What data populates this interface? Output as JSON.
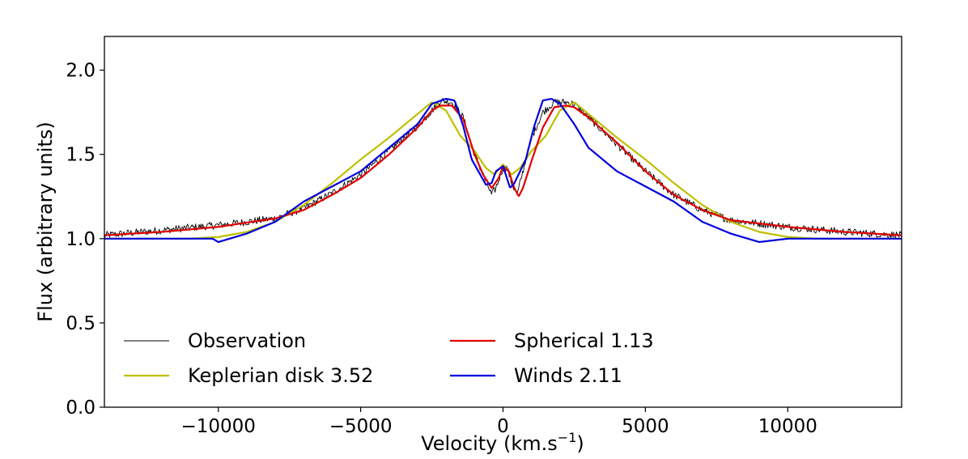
{
  "chart_data": {
    "type": "line",
    "title": "",
    "xlabel": "Velocity (km.s",
    "xlabel_superscript": "−1",
    "xlabel_suffix": ")",
    "ylabel": "Flux (arbitrary units)",
    "xlim": [
      -14000,
      14000
    ],
    "ylim": [
      0.0,
      2.2
    ],
    "xticks": [
      -10000,
      -5000,
      0,
      5000,
      10000
    ],
    "xtick_labels": [
      "−10000",
      "−5000",
      "0",
      "5000",
      "10000"
    ],
    "yticks": [
      0.0,
      0.5,
      1.0,
      1.5,
      2.0
    ],
    "ytick_labels": [
      "0.0",
      "0.5",
      "1.0",
      "1.5",
      "2.0"
    ],
    "grid": false,
    "legend_position": "bottom-left",
    "legend_columns": 2,
    "series": [
      {
        "name": "Observation",
        "legend_label": "Observation",
        "color": "#000000",
        "style": "thin-noisy",
        "x": [
          -14000,
          -12000,
          -10000,
          -8000,
          -7000,
          -6000,
          -5000,
          -4000,
          -3000,
          -2500,
          -2200,
          -1800,
          -1400,
          -1000,
          -700,
          -500,
          -400,
          -250,
          0,
          150,
          300,
          500,
          700,
          1000,
          1400,
          1800,
          2200,
          2500,
          3000,
          4000,
          5000,
          6000,
          7000,
          8000,
          10000,
          12000,
          14000
        ],
        "values": [
          1.02,
          1.05,
          1.08,
          1.12,
          1.18,
          1.27,
          1.38,
          1.52,
          1.67,
          1.76,
          1.82,
          1.81,
          1.72,
          1.5,
          1.38,
          1.3,
          1.26,
          1.3,
          1.42,
          1.42,
          1.33,
          1.26,
          1.4,
          1.6,
          1.75,
          1.81,
          1.81,
          1.8,
          1.72,
          1.56,
          1.4,
          1.26,
          1.17,
          1.11,
          1.07,
          1.04,
          1.02
        ]
      },
      {
        "name": "Keplerian disk",
        "legend_label": "Keplerian disk  3.52",
        "color": "#bfbf00",
        "x": [
          -14000,
          -12000,
          -11000,
          -10000,
          -9000,
          -8000,
          -7000,
          -6000,
          -5000,
          -4000,
          -3000,
          -2500,
          -2000,
          -1500,
          -1000,
          -600,
          -300,
          0,
          300,
          600,
          1000,
          1500,
          2000,
          2500,
          3000,
          4000,
          5000,
          6000,
          7000,
          8000,
          9000,
          10000,
          11000,
          12000,
          14000
        ],
        "values": [
          1.0,
          1.0,
          1.0,
          1.01,
          1.04,
          1.1,
          1.2,
          1.33,
          1.47,
          1.6,
          1.74,
          1.81,
          1.76,
          1.61,
          1.52,
          1.42,
          1.38,
          1.44,
          1.38,
          1.42,
          1.52,
          1.61,
          1.76,
          1.81,
          1.74,
          1.6,
          1.47,
          1.33,
          1.2,
          1.1,
          1.04,
          1.01,
          1.0,
          1.0,
          1.0
        ]
      },
      {
        "name": "Spherical",
        "legend_label": "Spherical  1.13",
        "color": "#e00000",
        "x": [
          -14000,
          -12000,
          -10000,
          -8000,
          -7000,
          -6000,
          -5000,
          -4000,
          -3000,
          -2500,
          -2200,
          -1800,
          -1400,
          -1000,
          -700,
          -400,
          -150,
          0,
          200,
          400,
          550,
          700,
          1000,
          1400,
          1800,
          2200,
          2500,
          3000,
          4000,
          5000,
          6000,
          7000,
          8000,
          10000,
          12000,
          14000
        ],
        "values": [
          1.02,
          1.04,
          1.07,
          1.12,
          1.17,
          1.26,
          1.36,
          1.5,
          1.66,
          1.76,
          1.79,
          1.79,
          1.71,
          1.5,
          1.38,
          1.3,
          1.36,
          1.43,
          1.4,
          1.3,
          1.25,
          1.3,
          1.46,
          1.66,
          1.78,
          1.79,
          1.78,
          1.72,
          1.57,
          1.4,
          1.26,
          1.17,
          1.11,
          1.07,
          1.04,
          1.02
        ]
      },
      {
        "name": "Winds",
        "legend_label": "Winds  2.11",
        "color": "#0000dd",
        "x": [
          -14000,
          -12000,
          -10200,
          -10000,
          -9000,
          -8000,
          -7000,
          -6000,
          -5000,
          -4000,
          -3000,
          -2500,
          -2000,
          -1700,
          -1400,
          -1100,
          -800,
          -600,
          -400,
          -250,
          0,
          250,
          400,
          600,
          800,
          1100,
          1400,
          1700,
          2000,
          2500,
          3000,
          4000,
          5000,
          6000,
          7000,
          8000,
          9000,
          10000,
          10200,
          12000,
          14000
        ],
        "values": [
          1.0,
          1.0,
          1.0,
          0.98,
          1.03,
          1.1,
          1.22,
          1.31,
          1.4,
          1.54,
          1.68,
          1.8,
          1.83,
          1.82,
          1.67,
          1.47,
          1.38,
          1.32,
          1.33,
          1.4,
          1.43,
          1.3,
          1.33,
          1.4,
          1.47,
          1.67,
          1.82,
          1.83,
          1.8,
          1.68,
          1.54,
          1.4,
          1.31,
          1.22,
          1.1,
          1.03,
          0.98,
          1.0,
          1.0,
          1.0,
          1.0
        ]
      }
    ]
  }
}
